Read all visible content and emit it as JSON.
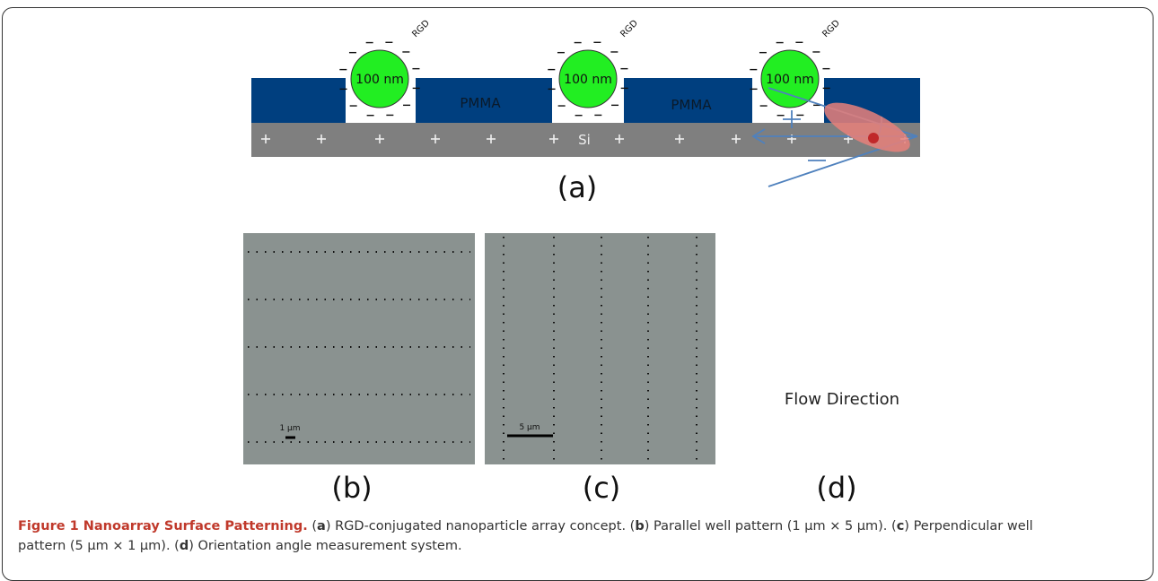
{
  "panel_a": {
    "label": "(a)",
    "particles": [
      {
        "size": "100 nm",
        "ligand": "RGD"
      },
      {
        "size": "100 nm",
        "ligand": "RGD"
      },
      {
        "size": "100 nm",
        "ligand": "RGD"
      }
    ],
    "layers": [
      "PMMA",
      "PMMA"
    ],
    "substrate": "Si"
  },
  "panel_b": {
    "label": "(b)",
    "scale_bar": "1 µm"
  },
  "panel_c": {
    "label": "(c)",
    "scale_bar": "5 µm"
  },
  "panel_d": {
    "label": "(d)",
    "text": "Flow Direction"
  },
  "caption": {
    "title": "Figure 1 Nanoarray Surface Patterning.",
    "segments": [
      "(",
      "a",
      ") RGD-conjugated nanoparticle array concept. (",
      "b",
      ") Parallel well pattern (1 µm × 5 µm). (",
      "c",
      ") Perpendicular well pattern (5 µm × 1 µm). (",
      "d",
      ") Orientation angle measurement system."
    ]
  }
}
